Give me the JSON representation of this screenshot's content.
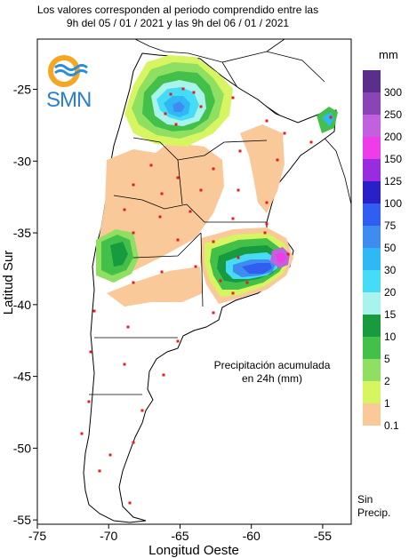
{
  "header": {
    "line1": "Los valores corresponden al periodo comprendido entre las",
    "line2": "9h del 05 / 01 / 2021  y las 9h del 06 / 01 / 2021"
  },
  "logo": {
    "text": "SMN",
    "ring_color": "#f5a623",
    "wave_color": "#2a8fd8"
  },
  "axes": {
    "xlabel": "Longitud Oeste",
    "ylabel": "Latitud Sur",
    "xticks": [
      "-75",
      "-70",
      "-65",
      "-60",
      "-55"
    ],
    "yticks": [
      "-25",
      "-30",
      "-35",
      "-40",
      "-45",
      "-50",
      "-55"
    ],
    "xrange": [
      -75,
      -53
    ],
    "yrange": [
      -55.3,
      -21.5
    ]
  },
  "annotation": {
    "line1": "Precipitación acumulada",
    "line2": "en 24h (mm)"
  },
  "legend": {
    "unit": "mm",
    "classes": [
      {
        "label": "300",
        "color": "#5b2d8c"
      },
      {
        "label": "250",
        "color": "#8a44b4"
      },
      {
        "label": "200",
        "color": "#c161e0"
      },
      {
        "label": "150",
        "color": "#ee3ce8"
      },
      {
        "label": "125",
        "color": "#9a2ce0"
      },
      {
        "label": "100",
        "color": "#2a20c8"
      },
      {
        "label": "75",
        "color": "#2f5ef0"
      },
      {
        "label": "50",
        "color": "#3f8cf0"
      },
      {
        "label": "30",
        "color": "#30b8f4"
      },
      {
        "label": "20",
        "color": "#46dcf6"
      },
      {
        "label": "15",
        "color": "#a8f4ec"
      },
      {
        "label": "10",
        "color": "#189a3e"
      },
      {
        "label": "5",
        "color": "#42c04a"
      },
      {
        "label": "2",
        "color": "#8edf62"
      },
      {
        "label": "1",
        "color": "#d6f560"
      },
      {
        "label": "0.1",
        "color": "#f9c99a"
      }
    ],
    "nodata_line1": "Sin",
    "nodata_line2": "Precip."
  },
  "colors": {
    "border": "#000000",
    "station": "#e02020",
    "land": "#ffffff"
  }
}
